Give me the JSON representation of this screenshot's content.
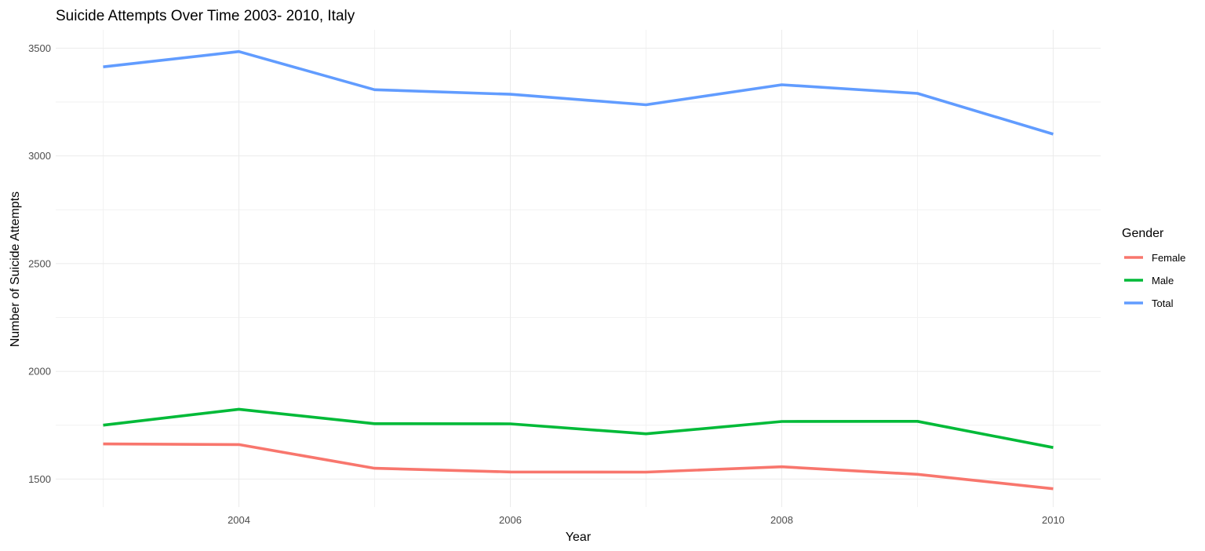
{
  "chart_data": {
    "type": "line",
    "title": "Suicide Attempts Over Time 2003- 2010, Italy",
    "xlabel": "Year",
    "ylabel": "Number of Suicide Attempts",
    "x": [
      2003,
      2004,
      2005,
      2006,
      2007,
      2008,
      2009,
      2010
    ],
    "xlim": [
      2002.65,
      2010.35
    ],
    "ylim": [
      1370,
      3585
    ],
    "x_ticks": [
      2004,
      2006,
      2008,
      2010
    ],
    "y_ticks": [
      1500,
      2000,
      2500,
      3000,
      3500
    ],
    "grid": true,
    "legend": {
      "title": "Gender",
      "position": "right"
    },
    "series": [
      {
        "name": "Female",
        "color": "#F8766D",
        "values": [
          1663,
          1660,
          1550,
          1533,
          1532,
          1557,
          1522,
          1455
        ]
      },
      {
        "name": "Male",
        "color": "#00BA38",
        "values": [
          1750,
          1824,
          1757,
          1756,
          1710,
          1767,
          1768,
          1646
        ]
      },
      {
        "name": "Total",
        "color": "#619CFF",
        "values": [
          3413,
          3484,
          3307,
          3286,
          3237,
          3330,
          3290,
          3101
        ]
      }
    ]
  }
}
